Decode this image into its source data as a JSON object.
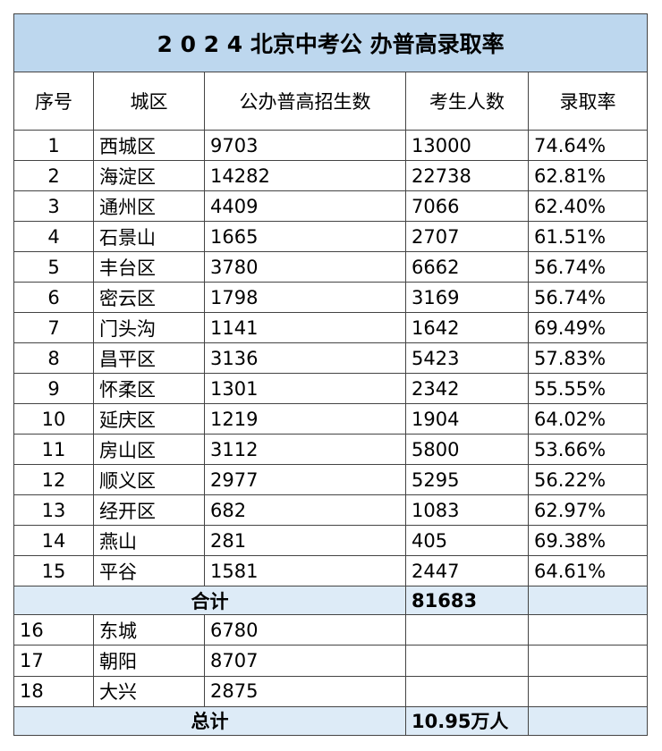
{
  "title": "2 0 2 4 北京中考公 办普高录取率",
  "header": [
    "序号",
    "城区",
    "公办普高招生数",
    "考生人数",
    "录取率"
  ],
  "rows": [
    [
      "1",
      "西城区",
      "9703",
      "13000",
      "74.64%"
    ],
    [
      "2",
      "海淀区",
      "14282",
      "22738",
      "62.81%"
    ],
    [
      "3",
      "通州区",
      "4409",
      "7066",
      "62.40%"
    ],
    [
      "4",
      "石景山",
      "1665",
      "2707",
      "61.51%"
    ],
    [
      "5",
      "丰台区",
      "3780",
      "6662",
      "56.74%"
    ],
    [
      "6",
      "密云区",
      "1798",
      "3169",
      "56.74%"
    ],
    [
      "7",
      "门头沟",
      "1141",
      "1642",
      "69.49%"
    ],
    [
      "8",
      "昌平区",
      "3136",
      "5423",
      "57.83%"
    ],
    [
      "9",
      "怀柔区",
      "1301",
      "2342",
      "55.55%"
    ],
    [
      "10",
      "延庆区",
      "1219",
      "1904",
      "64.02%"
    ],
    [
      "11",
      "房山区",
      "3112",
      "5800",
      "53.66%"
    ],
    [
      "12",
      "顺义区",
      "2977",
      "5295",
      "56.22%"
    ],
    [
      "13",
      "经开区",
      "682",
      "1083",
      "62.97%"
    ],
    [
      "14",
      "燕山",
      "281",
      "405",
      "69.38%"
    ],
    [
      "15",
      "平谷",
      "1581",
      "2447",
      "64.61%"
    ]
  ],
  "subtotal": {
    "label": "合计",
    "value": "81683"
  },
  "extra_rows": [
    [
      "16",
      "东城",
      "6780"
    ],
    [
      "17",
      "朝阳",
      "8707"
    ],
    [
      "18",
      "大兴",
      "2875"
    ]
  ],
  "total": {
    "label": "总计",
    "value": "10.95万人"
  }
}
